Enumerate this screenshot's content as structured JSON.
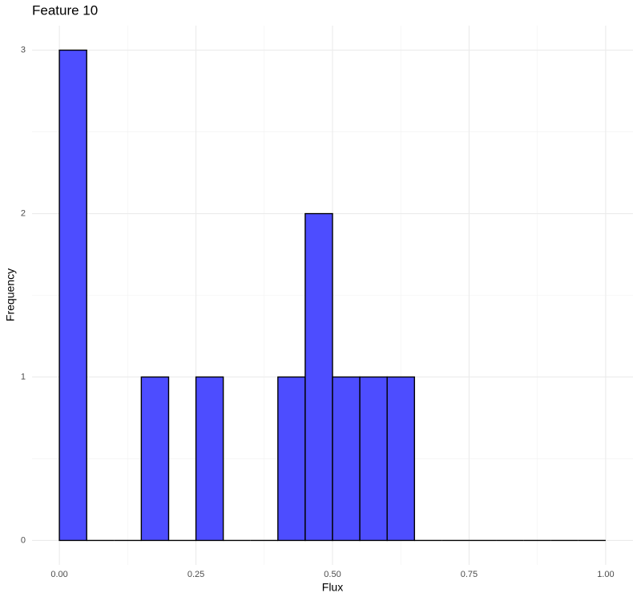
{
  "chart_data": {
    "type": "histogram",
    "title": "Feature 10",
    "x_label": "Flux",
    "y_label": "Frequency",
    "bins": [
      0,
      0.05,
      0.1,
      0.15,
      0.2,
      0.25,
      0.3,
      0.35,
      0.4,
      0.45,
      0.5,
      0.55,
      0.6,
      0.65,
      0.7,
      0.75,
      0.8,
      0.85,
      0.9,
      0.95,
      1.0
    ],
    "values": [
      3,
      0,
      0,
      1,
      0,
      1,
      0,
      0,
      1,
      2,
      1,
      1,
      1,
      0,
      0,
      0,
      0,
      0,
      0,
      0
    ],
    "color": "#4d4dff",
    "edge_color": "#000000",
    "xlim": [
      -0.05,
      1.05
    ],
    "ylim": [
      -0.15,
      3.15
    ],
    "xticks": [
      {
        "value": 0,
        "label": "0.00"
      },
      {
        "value": 0.25,
        "label": "0.25"
      },
      {
        "value": 0.5,
        "label": "0.50"
      },
      {
        "value": 0.75,
        "label": "0.75"
      },
      {
        "value": 1,
        "label": "1.00"
      }
    ],
    "yticks": [
      0,
      1,
      2,
      3
    ],
    "xminorticks": [
      0.125,
      0.375,
      0.625,
      0.875
    ],
    "yminorticks": [
      0.5,
      1.5,
      2.5
    ],
    "grid": true
  }
}
